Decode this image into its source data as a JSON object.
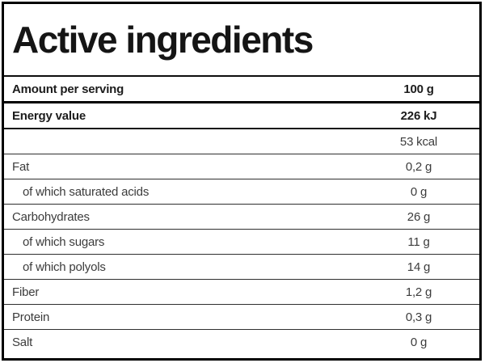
{
  "title": "Active ingredients",
  "header": {
    "label": "Amount per serving",
    "value": "100 g"
  },
  "rows": [
    {
      "label": "Energy value",
      "value": "226 kJ",
      "emphasis": true,
      "sub": false,
      "separator": "none"
    },
    {
      "label": "",
      "value": "53 kcal",
      "emphasis": false,
      "sub": false,
      "separator": "heavy"
    },
    {
      "label": "Fat",
      "value": "0,2 g",
      "emphasis": false,
      "sub": false,
      "separator": "light"
    },
    {
      "label": "of which saturated acids",
      "value": "0 g",
      "emphasis": false,
      "sub": true,
      "separator": "light"
    },
    {
      "label": "Carbohydrates",
      "value": "26 g",
      "emphasis": false,
      "sub": false,
      "separator": "light"
    },
    {
      "label": "of which sugars",
      "value": "11 g",
      "emphasis": false,
      "sub": true,
      "separator": "light"
    },
    {
      "label": "of which polyols",
      "value": "14 g",
      "emphasis": false,
      "sub": true,
      "separator": "light"
    },
    {
      "label": "Fiber",
      "value": "1,2 g",
      "emphasis": false,
      "sub": false,
      "separator": "light"
    },
    {
      "label": "Protein",
      "value": "0,3 g",
      "emphasis": false,
      "sub": false,
      "separator": "light"
    },
    {
      "label": "Salt",
      "value": "0 g",
      "emphasis": false,
      "sub": false,
      "separator": "light"
    }
  ],
  "colors": {
    "border": "#000000",
    "text_primary": "#1c1c1c",
    "text_secondary": "#3c3c3c",
    "background": "#ffffff"
  }
}
